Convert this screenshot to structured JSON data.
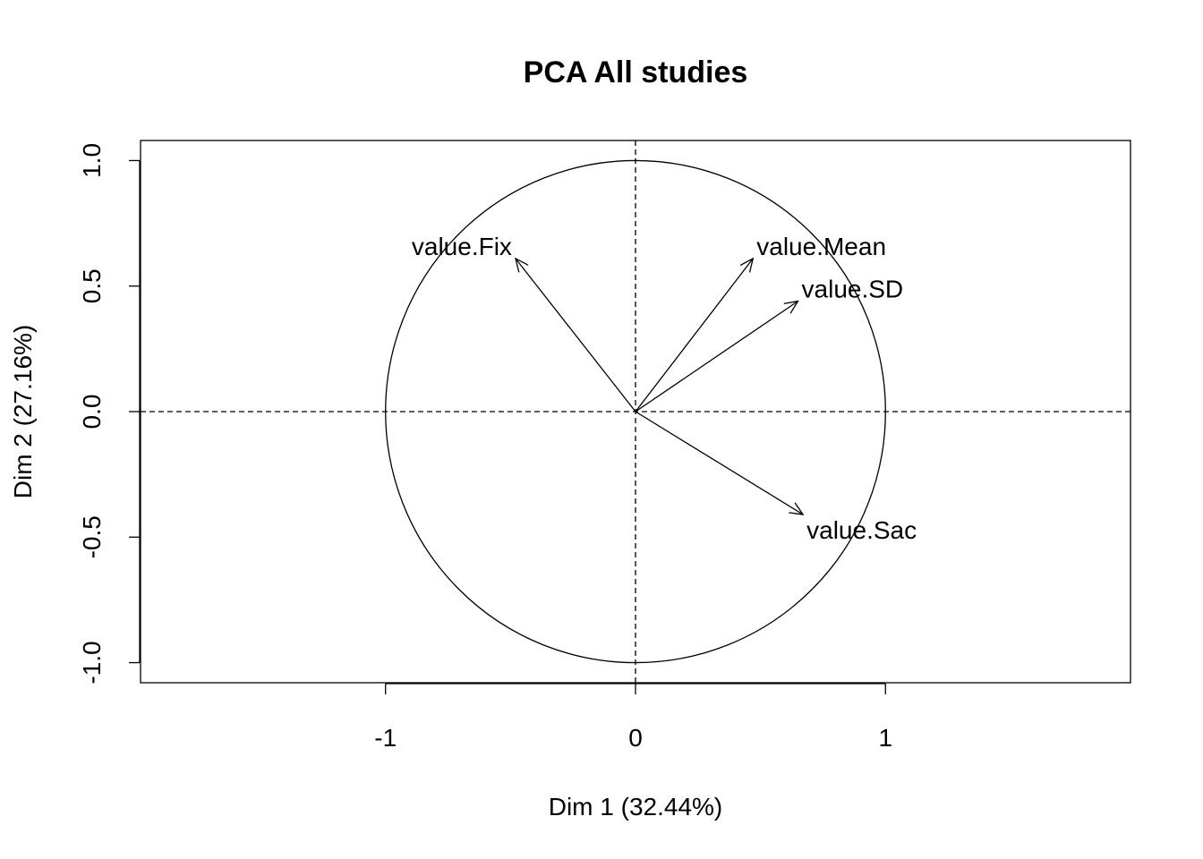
{
  "chart_data": {
    "type": "scatter",
    "title": "PCA All studies",
    "xlabel": "Dim 1 (32.44%)",
    "ylabel": "Dim 2 (27.16%)",
    "xlim": [
      -1.98,
      1.98
    ],
    "ylim": [
      -1.08,
      1.08
    ],
    "x_ticks": [
      -1,
      0,
      1
    ],
    "x_tick_labels": [
      "-1",
      "0",
      "1"
    ],
    "y_ticks": [
      -1.0,
      -0.5,
      0.0,
      0.5,
      1.0
    ],
    "y_tick_labels": [
      "-1.0",
      "-0.5",
      "0.0",
      "0.5",
      "1.0"
    ],
    "grid": false,
    "reference_lines": {
      "x": 0,
      "y": 0,
      "style": "dashed"
    },
    "unit_circle": true,
    "variables": [
      {
        "name": "value.Fix",
        "x": -0.48,
        "y": 0.61,
        "label_anchor": "end"
      },
      {
        "name": "value.Mean",
        "x": 0.47,
        "y": 0.61,
        "label_anchor": "start"
      },
      {
        "name": "value.SD",
        "x": 0.65,
        "y": 0.44,
        "label_anchor": "start"
      },
      {
        "name": "value.Sac",
        "x": 0.67,
        "y": -0.41,
        "label_anchor": "start"
      }
    ],
    "colors": {
      "stroke": "#000000",
      "background": "#ffffff"
    }
  }
}
